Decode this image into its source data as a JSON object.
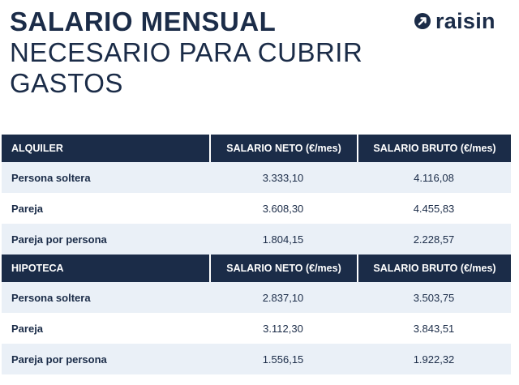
{
  "title": {
    "line1": "SALARIO MENSUAL",
    "line2": "NECESARIO PARA CUBRIR",
    "line3": "GASTOS"
  },
  "logo": {
    "text": "raisin",
    "icon": "raisin-logo-mark-icon"
  },
  "colors": {
    "navy": "#1b2c48",
    "row_tint": "#eaf0f7",
    "white": "#ffffff"
  },
  "sections": [
    {
      "heading": "ALQUILER",
      "col_neto": "SALARIO NETO (€/mes)",
      "col_bruto": "SALARIO BRUTO (€/mes)",
      "rows": [
        {
          "label": "Persona soltera",
          "neto": "3.333,10",
          "bruto": "4.116,08"
        },
        {
          "label": "Pareja",
          "neto": "3.608,30",
          "bruto": "4.455,83"
        },
        {
          "label": "Pareja por persona",
          "neto": "1.804,15",
          "bruto": "2.228,57"
        }
      ]
    },
    {
      "heading": "HIPOTECA",
      "col_neto": "SALARIO NETO (€/mes)",
      "col_bruto": "SALARIO BRUTO (€/mes)",
      "rows": [
        {
          "label": "Persona soltera",
          "neto": "2.837,10",
          "bruto": "3.503,75"
        },
        {
          "label": "Pareja",
          "neto": "3.112,30",
          "bruto": "3.843,51"
        },
        {
          "label": "Pareja por persona",
          "neto": "1.556,15",
          "bruto": "1.922,32"
        }
      ]
    }
  ]
}
